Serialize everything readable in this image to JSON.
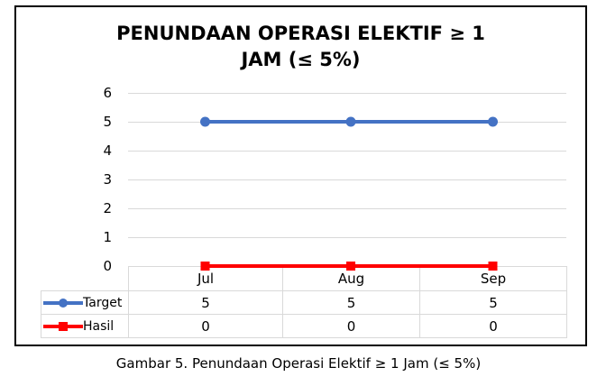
{
  "figure": {
    "title_line1": "PENUNDAAN OPERASI ELEKTIF ≥ 1",
    "title_line2": "JAM (≤ 5%)",
    "caption": "Gambar 5. Penundaan Operasi Elektif ≥ 1 Jam (≤ 5%)"
  },
  "chart_data": {
    "type": "line",
    "title": "PENUNDAAN OPERASI ELEKTIF ≥ 1 JAM (≤ 5%)",
    "categories": [
      "Jul",
      "Aug",
      "Sep"
    ],
    "series": [
      {
        "name": "Target",
        "values": [
          5,
          5,
          5
        ],
        "color": "#4472C4",
        "marker": "circle"
      },
      {
        "name": "Hasil",
        "values": [
          0,
          0,
          0
        ],
        "color": "#FF0000",
        "marker": "square"
      }
    ],
    "ylim": [
      0,
      6
    ],
    "yticks": [
      6,
      5,
      4,
      3,
      2,
      1,
      0
    ],
    "grid": true,
    "grid_color": "#D9D9D9",
    "table_border_color": "#D9D9D9",
    "legend_position": "data-table-left",
    "data_table": true
  }
}
